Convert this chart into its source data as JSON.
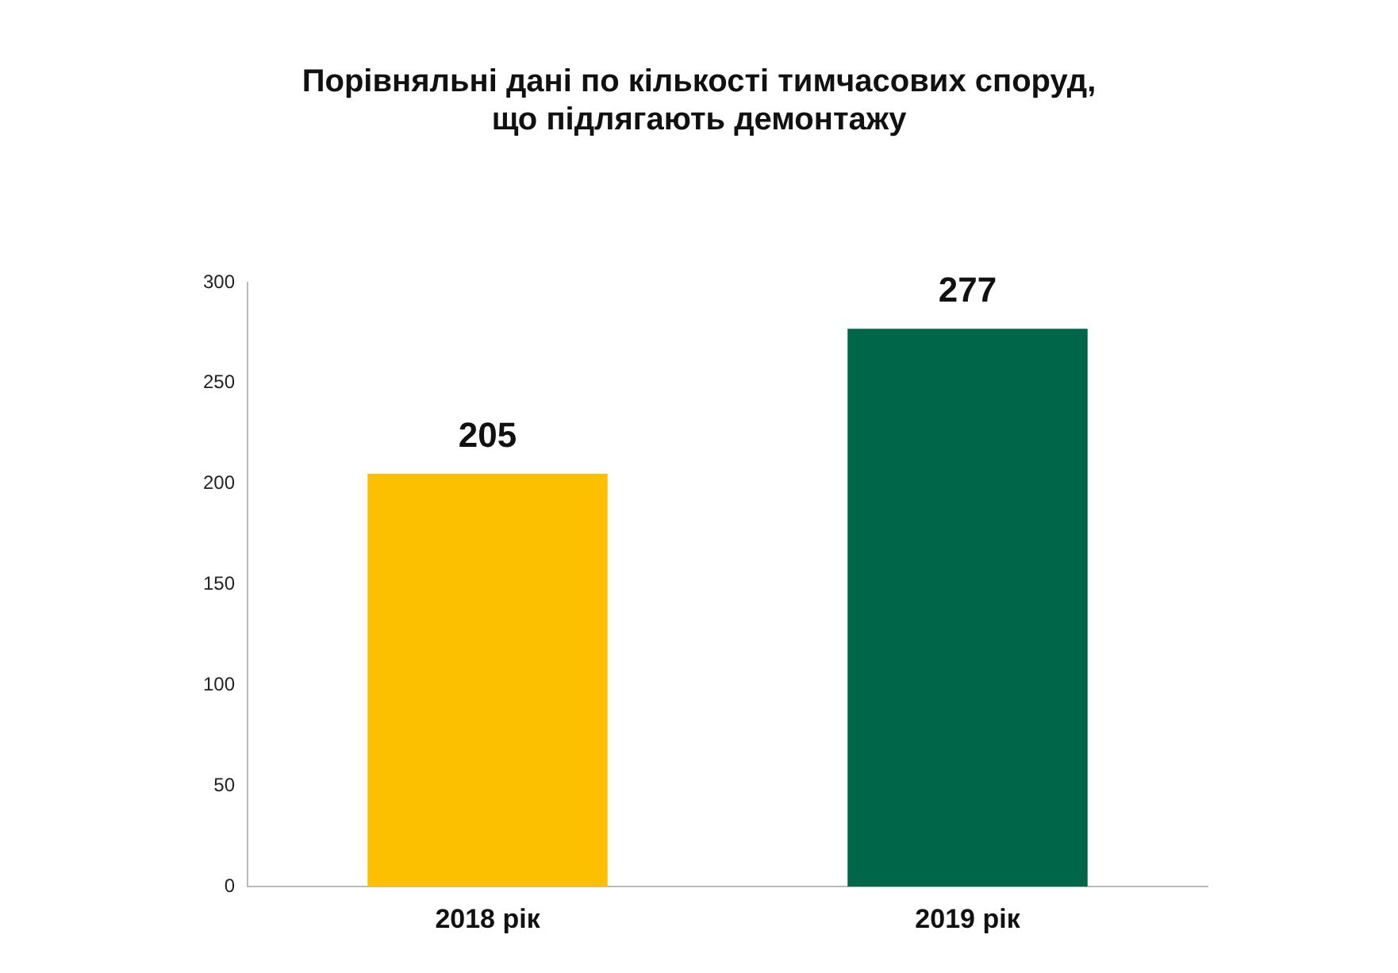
{
  "chart_data": {
    "type": "bar",
    "title": "Порівняльні дані по кількості тимчасових споруд,\nщо підлягають демонтажу",
    "categories": [
      "2018 рік",
      "2019 рік"
    ],
    "values": [
      205,
      277
    ],
    "colors": [
      "#fdc000",
      "#00664a"
    ],
    "ylim": [
      0,
      300
    ],
    "yticks": [
      0,
      50,
      100,
      150,
      200,
      250,
      300
    ],
    "grid": false,
    "data_labels": true
  }
}
